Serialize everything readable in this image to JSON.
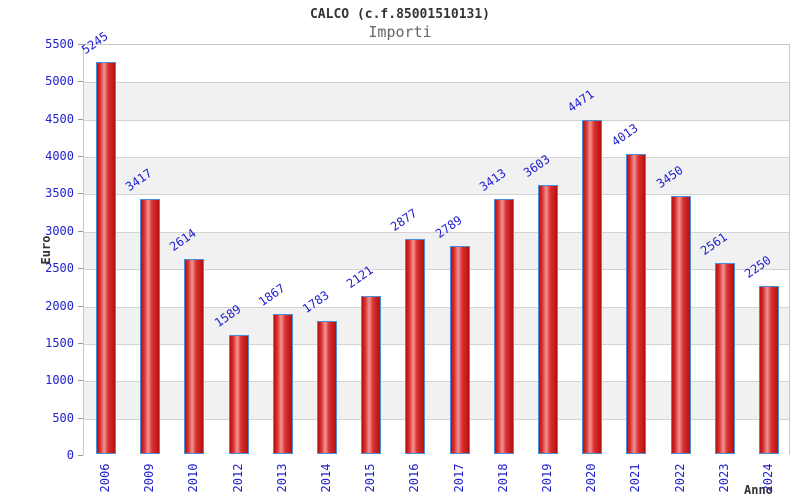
{
  "header": {
    "title": "CALCO (c.f.85001510131)",
    "subtitle": "Importi"
  },
  "chart_data": {
    "type": "bar",
    "title": "CALCO (c.f.85001510131)",
    "subtitle": "Importi",
    "xlabel": "Anno",
    "ylabel": "Euro",
    "categories": [
      "2006",
      "2009",
      "2010",
      "2012",
      "2013",
      "2014",
      "2015",
      "2016",
      "2017",
      "2018",
      "2019",
      "2020",
      "2021",
      "2022",
      "2023",
      "2024"
    ],
    "values": [
      5245,
      3417,
      2614,
      1589,
      1867,
      1783,
      2121,
      2877,
      2789,
      3413,
      3603,
      4471,
      4013,
      3450,
      2561,
      2250
    ],
    "ylim": [
      0,
      5500
    ],
    "ytick_step": 500,
    "grid": true,
    "legend": "none",
    "colors": {
      "bar_border": "#4a90d9",
      "bar_edge_dark": "#b81010",
      "bar_mid": "#d93030",
      "bar_highlight": "#f09494",
      "blue_text": "#2222cc",
      "axis_text": "#333333",
      "subtitle_text": "#666666",
      "gridline": "#d4d4d4",
      "band_gray": "#f1f1f1",
      "band_white": "#ffffff",
      "plot_border": "#c8c8c8"
    }
  }
}
